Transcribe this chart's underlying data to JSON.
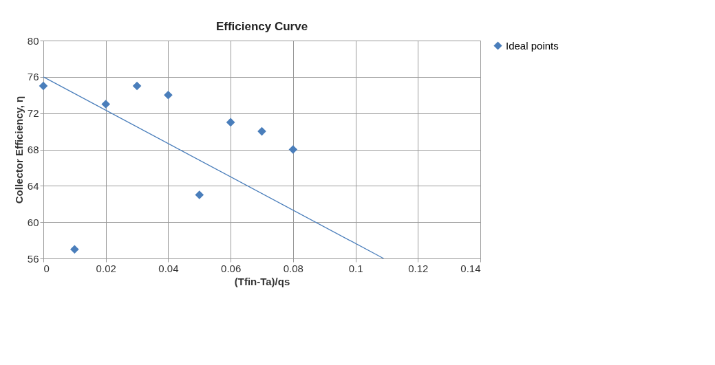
{
  "chart_data": {
    "type": "scatter",
    "title": "Efficiency Curve",
    "xlabel": "(Tfin-Ta)/qs",
    "ylabel": "Collector Efficiency, η",
    "x": [
      0,
      0.01,
      0.02,
      0.03,
      0.04,
      0.05,
      0.06,
      0.07,
      0.08
    ],
    "series": [
      {
        "name": "Ideal points",
        "color": "#4a7ebb",
        "values": [
          75,
          57,
          73,
          75,
          74,
          63,
          71,
          70,
          68
        ],
        "marker": "diamond"
      },
      {
        "type": "line",
        "color": "#4a7ebb",
        "x": [
          0,
          0.109
        ],
        "values": [
          76,
          56
        ]
      }
    ],
    "xlim": [
      0,
      0.14
    ],
    "xticks": [
      0,
      0.02,
      0.04,
      0.06,
      0.08,
      0.1,
      0.12,
      0.14
    ],
    "ylim": [
      56,
      80
    ],
    "yticks": [
      56,
      60,
      64,
      68,
      72,
      76,
      80
    ],
    "grid": true,
    "legend": "right"
  }
}
